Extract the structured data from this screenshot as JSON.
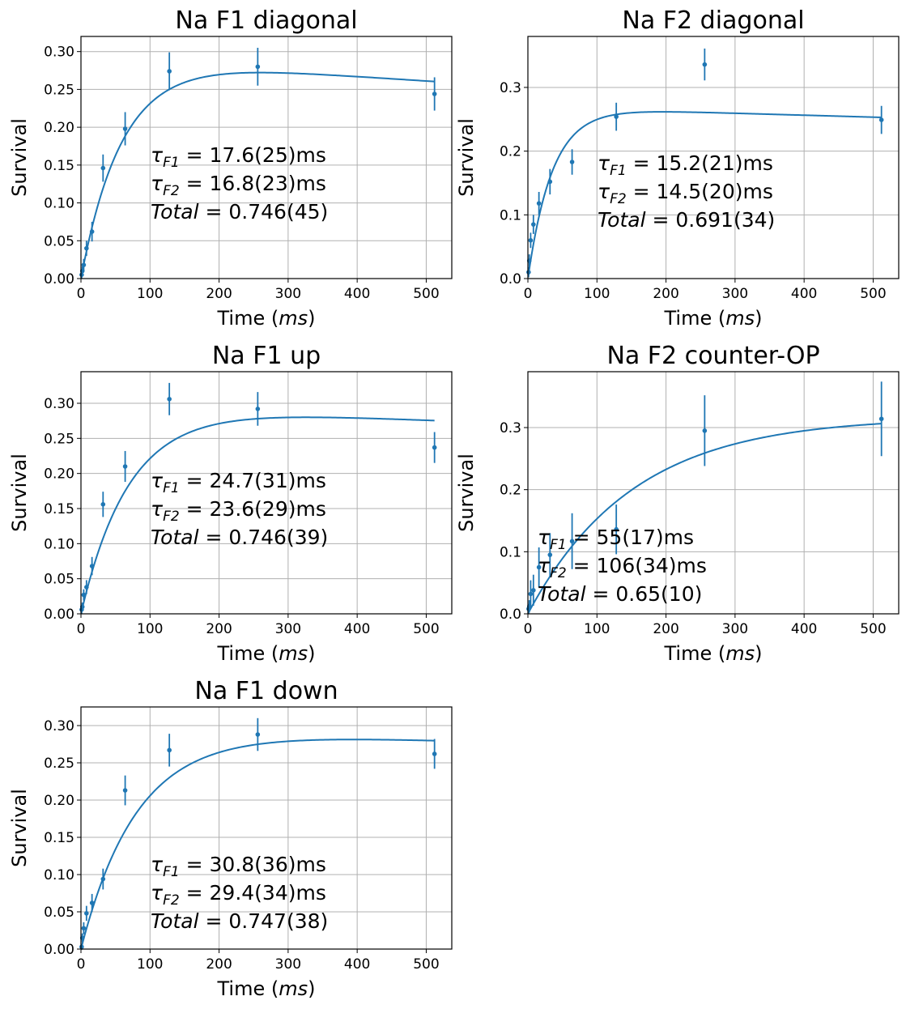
{
  "colors": {
    "series": "#1f77b4",
    "grid": "#b0b0b0",
    "axes": "#000000"
  },
  "chart_data": [
    {
      "type": "scatter",
      "title": "Na F1 diagonal",
      "xlabel_main": "Time (",
      "xlabel_unit": "ms",
      "xlabel_end": ")",
      "ylabel": "Survival",
      "xlim": [
        0,
        537
      ],
      "ylim": [
        0,
        0.32
      ],
      "xticks": [
        0,
        100,
        200,
        300,
        400,
        500
      ],
      "xtick_labels": [
        "0",
        "100",
        "200",
        "300",
        "400",
        "500"
      ],
      "yticks": [
        0,
        0.05,
        0.1,
        0.15,
        0.2,
        0.25,
        0.3
      ],
      "ytick_labels": [
        "0.00",
        "0.05",
        "0.10",
        "0.15",
        "0.20",
        "0.25",
        "0.30"
      ],
      "grid": true,
      "points": [
        {
          "x": 1,
          "y": 0.005,
          "err": 0.005
        },
        {
          "x": 2,
          "y": 0.01,
          "err": 0.006
        },
        {
          "x": 4,
          "y": 0.018,
          "err": 0.008
        },
        {
          "x": 8,
          "y": 0.04,
          "err": 0.01
        },
        {
          "x": 16,
          "y": 0.062,
          "err": 0.013
        },
        {
          "x": 32,
          "y": 0.146,
          "err": 0.018
        },
        {
          "x": 64,
          "y": 0.198,
          "err": 0.022
        },
        {
          "x": 128,
          "y": 0.274,
          "err": 0.025
        },
        {
          "x": 256,
          "y": 0.28,
          "err": 0.025
        },
        {
          "x": 512,
          "y": 0.244,
          "err": 0.022
        }
      ],
      "fit": {
        "A": 0.293,
        "b": 0.00023,
        "k": 0.0165,
        "x0": 0
      },
      "annotation": [
        {
          "sym": "τ",
          "sub": "F1",
          "value": " = 17.6(25)ms"
        },
        {
          "sym": "τ",
          "sub": "F2",
          "value": " = 16.8(23)ms"
        },
        {
          "sym": "Total",
          "sub": "",
          "value": " = 0.746(45)"
        }
      ]
    },
    {
      "type": "scatter",
      "title": "Na F2 diagonal",
      "xlabel_main": "Time (",
      "xlabel_unit": "ms",
      "xlabel_end": ")",
      "ylabel": "Survival",
      "xlim": [
        0,
        537
      ],
      "ylim": [
        0,
        0.38
      ],
      "xticks": [
        0,
        100,
        200,
        300,
        400,
        500
      ],
      "xtick_labels": [
        "0",
        "100",
        "200",
        "300",
        "400",
        "500"
      ],
      "yticks": [
        0,
        0.1,
        0.2,
        0.3
      ],
      "ytick_labels": [
        "0.0",
        "0.1",
        "0.2",
        "0.3"
      ],
      "grid": true,
      "points": [
        {
          "x": 1,
          "y": 0.01,
          "err": 0.008
        },
        {
          "x": 2,
          "y": 0.028,
          "err": 0.01
        },
        {
          "x": 4,
          "y": 0.06,
          "err": 0.012
        },
        {
          "x": 8,
          "y": 0.085,
          "err": 0.015
        },
        {
          "x": 16,
          "y": 0.118,
          "err": 0.018
        },
        {
          "x": 32,
          "y": 0.152,
          "err": 0.02
        },
        {
          "x": 64,
          "y": 0.183,
          "err": 0.02
        },
        {
          "x": 128,
          "y": 0.254,
          "err": 0.022
        },
        {
          "x": 256,
          "y": 0.336,
          "err": 0.025
        },
        {
          "x": 512,
          "y": 0.249,
          "err": 0.022
        }
      ],
      "fit": {
        "A": 0.269,
        "b": 0.00012,
        "k": 0.028,
        "x0": 0
      },
      "annotation": [
        {
          "sym": "τ",
          "sub": "F1",
          "value": " = 15.2(21)ms"
        },
        {
          "sym": "τ",
          "sub": "F2",
          "value": " = 14.5(20)ms"
        },
        {
          "sym": "Total",
          "sub": "",
          "value": " = 0.691(34)"
        }
      ]
    },
    {
      "type": "scatter",
      "title": "Na F1 up",
      "xlabel_main": "Time (",
      "xlabel_unit": "ms",
      "xlabel_end": ")",
      "ylabel": "Survival",
      "xlim": [
        0,
        537
      ],
      "ylim": [
        0,
        0.345
      ],
      "xticks": [
        0,
        100,
        200,
        300,
        400,
        500
      ],
      "xtick_labels": [
        "0",
        "100",
        "200",
        "300",
        "400",
        "500"
      ],
      "yticks": [
        0,
        0.05,
        0.1,
        0.15,
        0.2,
        0.25,
        0.3
      ],
      "ytick_labels": [
        "0.00",
        "0.05",
        "0.10",
        "0.15",
        "0.20",
        "0.25",
        "0.30"
      ],
      "grid": true,
      "points": [
        {
          "x": 1,
          "y": 0.006,
          "err": 0.006
        },
        {
          "x": 2,
          "y": 0.01,
          "err": 0.006
        },
        {
          "x": 4,
          "y": 0.027,
          "err": 0.008
        },
        {
          "x": 8,
          "y": 0.038,
          "err": 0.01
        },
        {
          "x": 16,
          "y": 0.068,
          "err": 0.013
        },
        {
          "x": 32,
          "y": 0.156,
          "err": 0.018
        },
        {
          "x": 64,
          "y": 0.21,
          "err": 0.022
        },
        {
          "x": 128,
          "y": 0.306,
          "err": 0.023
        },
        {
          "x": 256,
          "y": 0.292,
          "err": 0.024
        },
        {
          "x": 512,
          "y": 0.237,
          "err": 0.022
        }
      ],
      "fit": {
        "A": 0.296,
        "b": 0.00014,
        "k": 0.0142,
        "x0": 0
      },
      "annotation": [
        {
          "sym": "τ",
          "sub": "F1",
          "value": " = 24.7(31)ms"
        },
        {
          "sym": "τ",
          "sub": "F2",
          "value": " = 23.6(29)ms"
        },
        {
          "sym": "Total",
          "sub": "",
          "value": " = 0.746(39)"
        }
      ]
    },
    {
      "type": "scatter",
      "title": "Na F2 counter-OP",
      "xlabel_main": "Time (",
      "xlabel_unit": "ms",
      "xlabel_end": ")",
      "ylabel": "Survival",
      "xlim": [
        0,
        537
      ],
      "ylim": [
        0,
        0.39
      ],
      "xticks": [
        0,
        100,
        200,
        300,
        400,
        500
      ],
      "xtick_labels": [
        "0",
        "100",
        "200",
        "300",
        "400",
        "500"
      ],
      "yticks": [
        0,
        0.1,
        0.2,
        0.3
      ],
      "ytick_labels": [
        "0.0",
        "0.1",
        "0.2",
        "0.3"
      ],
      "grid": true,
      "points": [
        {
          "x": 1,
          "y": 0.008,
          "err": 0.008
        },
        {
          "x": 2,
          "y": 0.012,
          "err": 0.01
        },
        {
          "x": 4,
          "y": 0.032,
          "err": 0.022
        },
        {
          "x": 8,
          "y": 0.038,
          "err": 0.025
        },
        {
          "x": 16,
          "y": 0.075,
          "err": 0.032
        },
        {
          "x": 32,
          "y": 0.095,
          "err": 0.035
        },
        {
          "x": 64,
          "y": 0.117,
          "err": 0.045
        },
        {
          "x": 128,
          "y": 0.136,
          "err": 0.04
        },
        {
          "x": 256,
          "y": 0.295,
          "err": 0.057
        },
        {
          "x": 512,
          "y": 0.314,
          "err": 0.06
        }
      ],
      "fit": {
        "A": 0.321,
        "b": 2e-05,
        "k": 0.0065,
        "x0": 0
      },
      "annotation": [
        {
          "sym": "τ",
          "sub": "F1",
          "value": " = 55(17)ms"
        },
        {
          "sym": "τ",
          "sub": "F2",
          "value": " = 106(34)ms"
        },
        {
          "sym": "Total",
          "sub": "",
          "value": " = 0.65(10)"
        }
      ]
    },
    {
      "type": "scatter",
      "title": "Na F1 down",
      "xlabel_main": "Time (",
      "xlabel_unit": "ms",
      "xlabel_end": ")",
      "ylabel": "Survival",
      "xlim": [
        0,
        537
      ],
      "ylim": [
        0,
        0.325
      ],
      "xticks": [
        0,
        100,
        200,
        300,
        400,
        500
      ],
      "xtick_labels": [
        "0",
        "100",
        "200",
        "300",
        "400",
        "500"
      ],
      "yticks": [
        0,
        0.05,
        0.1,
        0.15,
        0.2,
        0.25,
        0.3
      ],
      "ytick_labels": [
        "0.00",
        "0.05",
        "0.10",
        "0.15",
        "0.20",
        "0.25",
        "0.30"
      ],
      "grid": true,
      "points": [
        {
          "x": 1,
          "y": 0.003,
          "err": 0.004
        },
        {
          "x": 2,
          "y": 0.015,
          "err": 0.006
        },
        {
          "x": 4,
          "y": 0.028,
          "err": 0.008
        },
        {
          "x": 8,
          "y": 0.048,
          "err": 0.01
        },
        {
          "x": 16,
          "y": 0.062,
          "err": 0.012
        },
        {
          "x": 32,
          "y": 0.094,
          "err": 0.014
        },
        {
          "x": 64,
          "y": 0.213,
          "err": 0.02
        },
        {
          "x": 128,
          "y": 0.267,
          "err": 0.022
        },
        {
          "x": 256,
          "y": 0.288,
          "err": 0.022
        },
        {
          "x": 512,
          "y": 0.262,
          "err": 0.02
        }
      ],
      "fit": {
        "A": 0.295,
        "b": 0.0001,
        "k": 0.0122,
        "x0": 0
      },
      "annotation": [
        {
          "sym": "τ",
          "sub": "F1",
          "value": " = 30.8(36)ms"
        },
        {
          "sym": "τ",
          "sub": "F2",
          "value": " = 29.4(34)ms"
        },
        {
          "sym": "Total",
          "sub": "",
          "value": " = 0.747(38)"
        }
      ]
    }
  ]
}
